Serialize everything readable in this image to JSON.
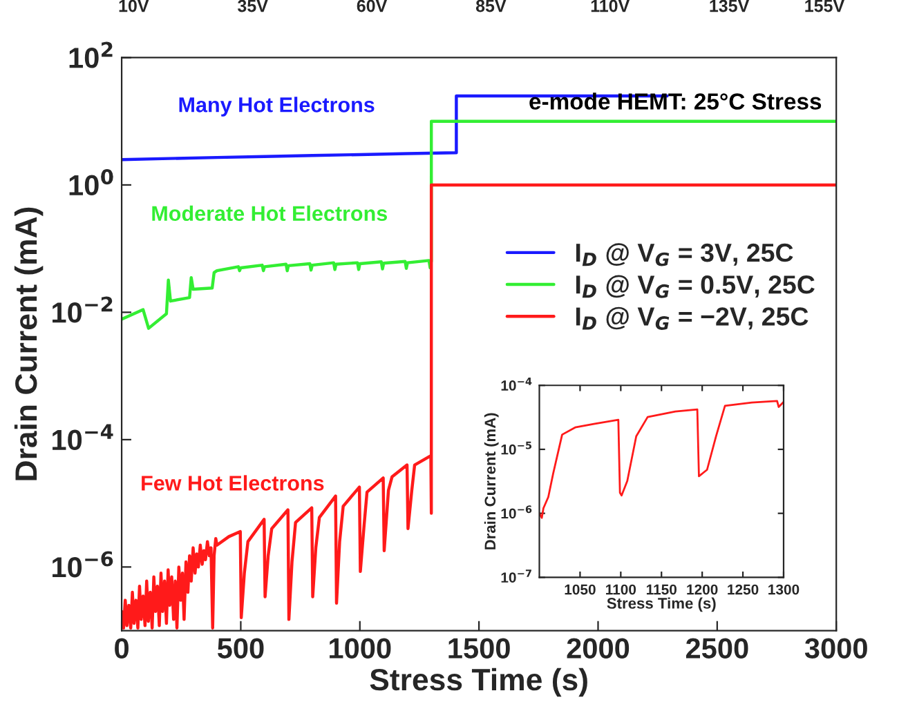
{
  "chart_data": [
    {
      "type": "line",
      "xlabel": "Stress Time (s)",
      "ylabel": "Drain Current (mA)",
      "log": "y",
      "legend": "center right",
      "xlim": [
        0,
        3000
      ],
      "xticks": [
        0,
        500,
        1000,
        1500,
        2000,
        2500,
        3000
      ],
      "ylim": [
        1e-07,
        100
      ],
      "yticks": [
        {
          "value": 100,
          "label": "10$^{2}$"
        },
        {
          "value": 1,
          "label": "10$^{0}$"
        },
        {
          "value": 0.01,
          "label": "10$^{−2}$"
        },
        {
          "value": 0.0001,
          "label": "10$^{−4}$"
        },
        {
          "value": 1e-06,
          "label": "10$^{−6}$"
        }
      ],
      "x2lim": [
        7.5,
        157.5
      ],
      "x2ticks": [
        {
          "value": 10,
          "label": "10V"
        },
        {
          "value": 35,
          "label": "35V"
        },
        {
          "value": 60,
          "label": "60V"
        },
        {
          "value": 85,
          "label": "85V"
        },
        {
          "value": 110,
          "label": "110V"
        },
        {
          "value": 135,
          "label": "135V"
        },
        {
          "value": 155,
          "label": "155V"
        }
      ],
      "annotations": [
        "e-mode HEMT: 25°C Stress",
        {
          "text": "Many Hot Electrons",
          "x": 650,
          "y": 2.8
        },
        {
          "text": "Moderate Hot Electrons",
          "x": 620,
          "y": 0.055
        },
        {
          "text": "Few Hot Electrons",
          "x": 465,
          "y": 3.2e-06
        }
      ],
      "series": [
        {
          "name": "I$_{D}$ @ V$_{G}$ = 3V, 25C",
          "color": "#1a1aff",
          "x": [
            0,
            200,
            400,
            600,
            800,
            1000,
            1200,
            1400,
            1405,
            1405,
            2290
          ],
          "values": [
            2.5,
            2.6,
            2.7,
            2.8,
            2.9,
            3.0,
            3.1,
            3.2,
            3.2,
            25,
            25
          ]
        },
        {
          "name": "I$_{D}$ @ V$_{G}$ = 0.5V, 25C",
          "color": "#33ee33",
          "x": [
            0,
            90,
            113,
            188,
            196,
            205,
            285,
            292,
            300,
            380,
            388,
            400,
            490,
            495,
            500,
            590,
            595,
            600,
            690,
            695,
            700,
            790,
            795,
            800,
            890,
            895,
            900,
            990,
            995,
            1000,
            1090,
            1095,
            1100,
            1190,
            1195,
            1200,
            1290,
            1295,
            1300,
            1300,
            3000
          ],
          "values": [
            0.0078,
            0.011,
            0.0056,
            0.0095,
            0.032,
            0.015,
            0.017,
            0.035,
            0.023,
            0.024,
            0.042,
            0.045,
            0.052,
            0.045,
            0.05,
            0.055,
            0.045,
            0.052,
            0.057,
            0.045,
            0.054,
            0.058,
            0.046,
            0.055,
            0.06,
            0.047,
            0.057,
            0.06,
            0.047,
            0.058,
            0.062,
            0.048,
            0.059,
            0.063,
            0.049,
            0.06,
            0.065,
            0.05,
            0.064,
            10,
            10
          ]
        },
        {
          "name": "I$_{D}$ @ V$_{G}$ = −2V, 25C",
          "color": "#ff1a1a",
          "x": [
            0,
            8,
            15,
            22,
            30,
            38,
            45,
            52,
            60,
            68,
            75,
            82,
            90,
            98,
            105,
            112,
            120,
            128,
            135,
            142,
            150,
            158,
            165,
            172,
            180,
            188,
            195,
            202,
            210,
            218,
            225,
            232,
            240,
            248,
            255,
            262,
            270,
            278,
            285,
            292,
            300,
            308,
            315,
            322,
            330,
            338,
            345,
            352,
            360,
            368,
            375,
            382,
            388,
            395,
            400,
            450,
            498,
            502,
            515,
            530,
            598,
            602,
            615,
            630,
            698,
            702,
            715,
            730,
            798,
            802,
            815,
            830,
            898,
            902,
            915,
            930,
            998,
            1002,
            1017,
            1030,
            1098,
            1102,
            1120,
            1135,
            1198,
            1202,
            1218,
            1230,
            1298,
            1300,
            1300,
            3000
          ],
          "values": [
            2e-07,
            1.1e-07,
            3e-07,
            1.2e-07,
            2.5e-07,
            1.1e-07,
            4e-07,
            1.3e-07,
            3e-07,
            1.1e-07,
            5e-07,
            1.5e-07,
            3.5e-07,
            1.2e-07,
            6e-07,
            1.4e-07,
            4e-07,
            1.1e-07,
            7e-07,
            2e-07,
            5e-07,
            1.2e-07,
            8e-07,
            2e-07,
            6e-07,
            1.3e-07,
            9e-07,
            2.5e-07,
            7e-07,
            1.5e-07,
            6e-07,
            1.1e-07,
            1e-06,
            3e-07,
            8e-07,
            1.5e-07,
            1.2e-06,
            4e-07,
            1.5e-06,
            6e-07,
            2e-06,
            8e-07,
            1.6e-06,
            1e-06,
            2.2e-06,
            1.1e-06,
            1.8e-06,
            1.3e-06,
            2.5e-06,
            1.5e-06,
            2e-06,
            1.1e-07,
            1.5e-06,
            2.8e-06,
            2.2e-06,
            3e-06,
            3.6e-06,
            1.6e-07,
            8e-07,
            2.5e-06,
            5.6e-06,
            3.4e-07,
            1.5e-06,
            4e-06,
            7.9e-06,
            1.5e-07,
            1.2e-06,
            5e-06,
            8.5e-06,
            3.4e-07,
            2e-06,
            6e-06,
            1.3e-05,
            2.7e-07,
            2.5e-06,
            9e-06,
            1.8e-05,
            8.5e-07,
            4.2e-06,
            1.5e-05,
            2.5e-05,
            1.8e-06,
            1.6e-05,
            2.6e-05,
            4e-05,
            4e-06,
            1.6e-05,
            4e-05,
            5.6e-05,
            7e-06,
            1,
            1
          ]
        }
      ]
    },
    {
      "type": "line",
      "xlabel": "Stress Time (s)",
      "ylabel": "Drain Current (mA)",
      "log": "y",
      "xlim": [
        1000,
        1300
      ],
      "xticks": [
        1050,
        1100,
        1150,
        1200,
        1250,
        1300
      ],
      "ylim": [
        1e-07,
        0.0001
      ],
      "yticks": [
        {
          "value": 1e-07,
          "label": "10$^{−7}$"
        },
        {
          "value": 1e-06,
          "label": "10$^{−6}$"
        },
        {
          "value": 1e-05,
          "label": "10$^{−5}$"
        },
        {
          "value": 0.0001,
          "label": "10$^{−4}$"
        }
      ],
      "series": [
        {
          "color": "#ff1a1a",
          "x": [
            1000,
            1003,
            1005,
            1011,
            1017,
            1028,
            1044,
            1067,
            1097,
            1099,
            1101,
            1108,
            1119,
            1133,
            1167,
            1194,
            1196,
            1206,
            1217,
            1228,
            1261,
            1292,
            1294,
            1300
          ],
          "values": [
            1e-06,
            8.5e-07,
            1.2e-06,
            1.8e-06,
            4.2e-06,
            1.7e-05,
            2.2e-05,
            2.5e-05,
            2.9e-05,
            2.1e-06,
            1.9e-06,
            3.2e-06,
            1.6e-05,
            3.2e-05,
            3.9e-05,
            4.2e-05,
            3.8e-06,
            4.8e-06,
            1.6e-05,
            4.8e-05,
            5.4e-05,
            5.7e-05,
            4.6e-05,
            5.5e-05
          ]
        }
      ]
    }
  ]
}
